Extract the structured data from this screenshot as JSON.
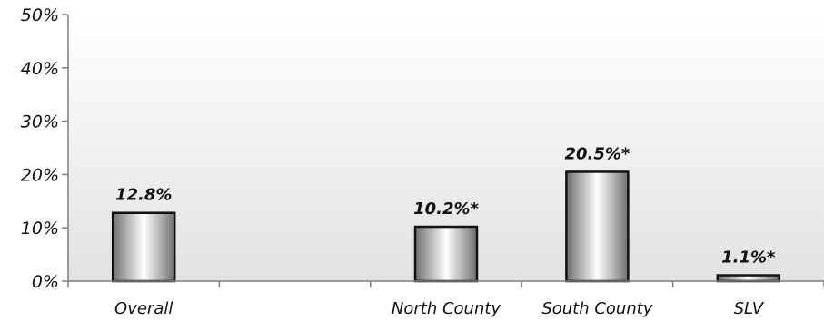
{
  "chart_data": {
    "type": "bar",
    "categories": [
      "Overall",
      "",
      "North County",
      "South County",
      "SLV"
    ],
    "values": [
      12.8,
      null,
      10.2,
      20.5,
      1.1
    ],
    "data_labels": [
      "12.8%",
      "",
      "10.2%*",
      "20.5%*",
      "1.1%*"
    ],
    "y_ticks": [
      "0%",
      "10%",
      "20%",
      "30%",
      "40%",
      "50%"
    ],
    "ylim": [
      0,
      50
    ],
    "title": "",
    "xlabel": "",
    "ylabel": "",
    "grid": false,
    "legend": "none",
    "colors": {
      "bar_outline": "#111111",
      "bar_dark": "#6e6e6e",
      "bar_light": "#ffffff",
      "plot_bg_top": "#ffffff",
      "plot_bg_bottom": "#e2e2e2",
      "axis": "#7f7f7f"
    }
  }
}
